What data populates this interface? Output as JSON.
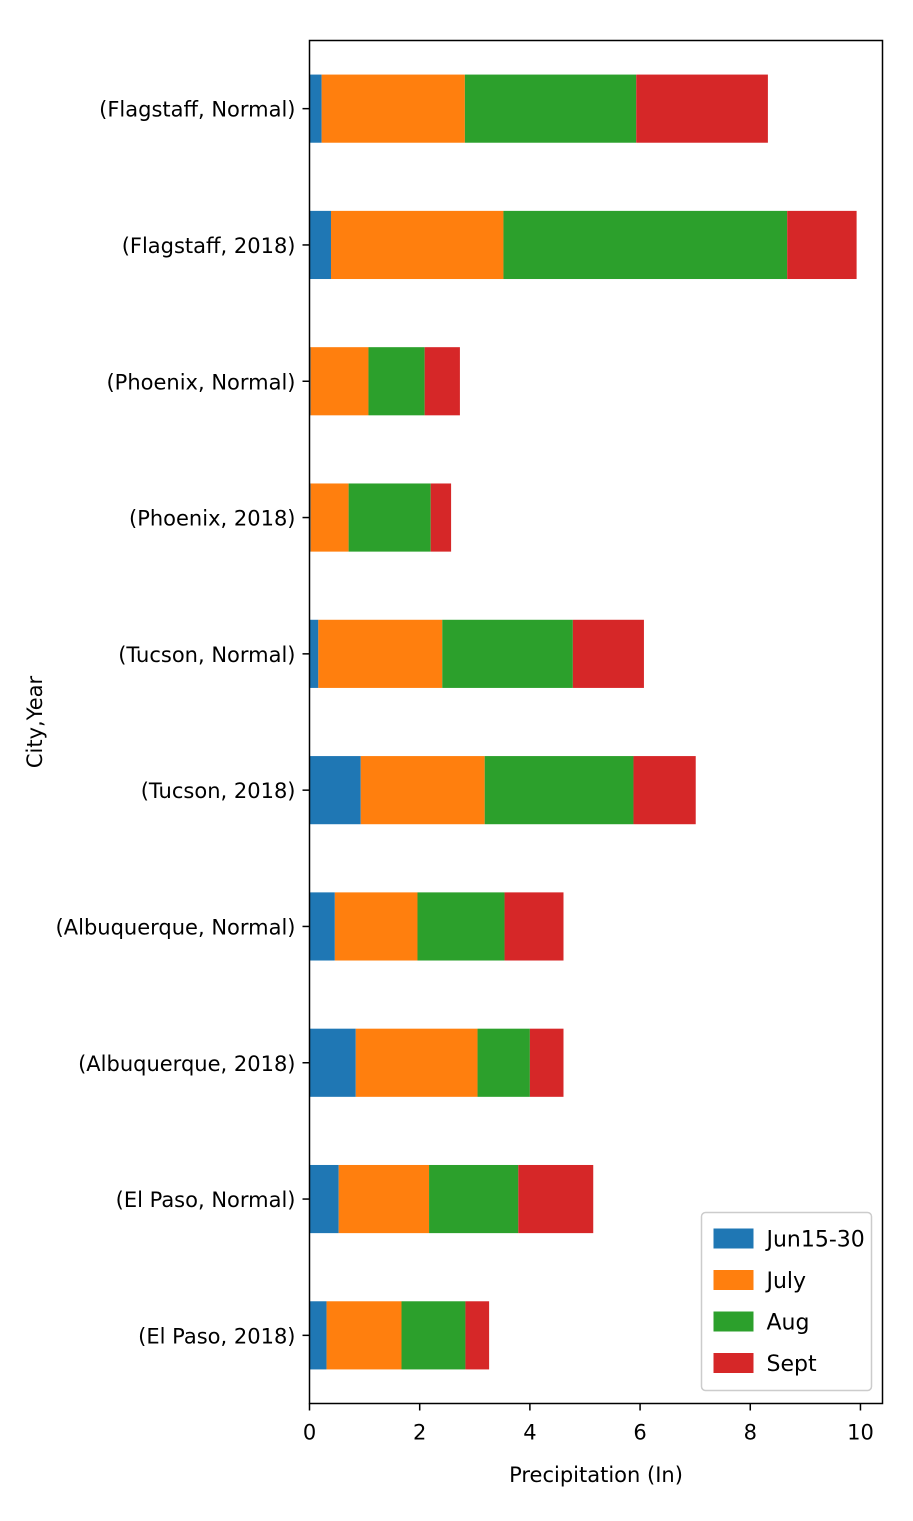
{
  "chart_data": {
    "type": "bar",
    "orientation": "horizontal",
    "stacked": true,
    "categories": [
      "(Flagstaff, Normal)",
      "(Flagstaff, 2018)",
      "(Phoenix, Normal)",
      "(Phoenix, 2018)",
      "(Tucson, Normal)",
      "(Tucson, 2018)",
      "(Albuquerque, Normal)",
      "(Albuquerque, 2018)",
      "(El Paso, Normal)",
      "(El Paso, 2018)"
    ],
    "series": [
      {
        "name": "Jun15-30",
        "color": "#1f77b4",
        "values": [
          0.22,
          0.39,
          0.02,
          0.02,
          0.16,
          0.93,
          0.46,
          0.84,
          0.53,
          0.31
        ]
      },
      {
        "name": "July",
        "color": "#ff7f0e",
        "values": [
          2.6,
          3.13,
          1.05,
          0.69,
          2.25,
          2.25,
          1.5,
          2.21,
          1.64,
          1.36
        ]
      },
      {
        "name": "Aug",
        "color": "#2ca02c",
        "values": [
          3.11,
          5.15,
          1.02,
          1.49,
          2.37,
          2.7,
          1.58,
          0.95,
          1.62,
          1.16
        ]
      },
      {
        "name": "Sept",
        "color": "#d62728",
        "values": [
          2.39,
          1.26,
          0.64,
          0.37,
          1.29,
          1.13,
          1.07,
          0.61,
          1.36,
          0.43
        ]
      }
    ],
    "title": "",
    "xlabel": "Precipitation (In)",
    "ylabel": "City,Year",
    "xlim": [
      0,
      10.4
    ],
    "xticks": [
      0,
      2,
      4,
      6,
      8,
      10
    ],
    "grid": false,
    "legend_position": "bottom-right"
  }
}
